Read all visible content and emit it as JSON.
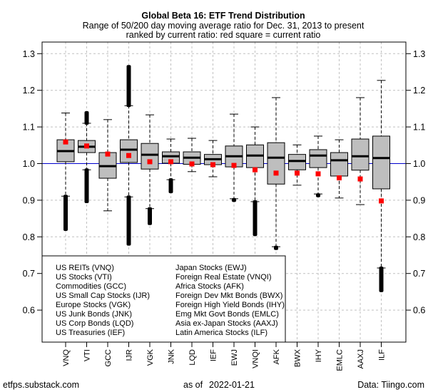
{
  "chart_data": {
    "type": "boxplot",
    "title": "Global Beta 16: ETF Trend Distribution",
    "subtitle_lines": [
      "Range of 50/200 day moving average ratio for Dec. 31, 2013 to present",
      "ranked by current ratio: red square = current ratio"
    ],
    "xlabel": "",
    "ylabel": "",
    "ylim": [
      0.58,
      1.336
    ],
    "yticks": [
      0.6,
      0.7,
      0.8,
      0.9,
      1.0,
      1.1,
      1.2,
      1.3
    ],
    "ytick_labels": [
      "0.6",
      "0.7",
      "0.8",
      "0.9",
      "1.0",
      "1.1",
      "1.2",
      "1.3"
    ],
    "reference_line": 1.0,
    "grid": true,
    "colors": {
      "box_fill": "#bebebe",
      "current_marker": "#ff0000",
      "reference_line": "#0000cc",
      "grid": "#c0c0c0"
    },
    "categories": [
      "VNQ",
      "VTI",
      "GCC",
      "IJR",
      "VGK",
      "JNK",
      "LQD",
      "IEF",
      "EWJ",
      "VNQI",
      "AFK",
      "BWX",
      "IHY",
      "EMLC",
      "AAXJ",
      "ILF"
    ],
    "series": [
      {
        "ticker": "VNQ",
        "whisker_low": 0.911,
        "q1": 1.005,
        "median": 1.034,
        "q3": 1.065,
        "whisker_high": 1.138,
        "outliers_low": [
          0.82,
          0.911
        ],
        "outliers_high": null,
        "current": 1.059
      },
      {
        "ticker": "VTI",
        "whisker_low": 0.983,
        "q1": 1.03,
        "median": 1.046,
        "q3": 1.063,
        "whisker_high": 1.11,
        "outliers_low": [
          0.896,
          0.983
        ],
        "outliers_high": [
          1.11,
          1.139
        ],
        "current": 1.048
      },
      {
        "ticker": "GCC",
        "whisker_low": 0.871,
        "q1": 0.96,
        "median": 0.993,
        "q3": 1.03,
        "whisker_high": 1.12,
        "outliers_low": null,
        "outliers_high": null,
        "current": 1.026
      },
      {
        "ticker": "IJR",
        "whisker_low": 0.909,
        "q1": 1.003,
        "median": 1.038,
        "q3": 1.065,
        "whisker_high": 1.158,
        "outliers_low": [
          0.78,
          0.909
        ],
        "outliers_high": [
          1.158,
          1.265
        ],
        "current": 1.022
      },
      {
        "ticker": "VGK",
        "whisker_low": 0.877,
        "q1": 0.985,
        "median": 1.024,
        "q3": 1.055,
        "whisker_high": 1.133,
        "outliers_low": [
          0.836,
          0.877
        ],
        "outliers_high": null,
        "current": 1.005
      },
      {
        "ticker": "JNK",
        "whisker_low": 0.956,
        "q1": 1.001,
        "median": 1.02,
        "q3": 1.032,
        "whisker_high": 1.067,
        "outliers_low": [
          0.923,
          0.956
        ],
        "outliers_high": null,
        "current": 1.005
      },
      {
        "ticker": "LQD",
        "whisker_low": 0.978,
        "q1": 0.998,
        "median": 1.016,
        "q3": 1.032,
        "whisker_high": 1.069,
        "outliers_low": null,
        "outliers_high": null,
        "current": 0.999
      },
      {
        "ticker": "IEF",
        "whisker_low": 0.964,
        "q1": 0.997,
        "median": 1.012,
        "q3": 1.025,
        "whisker_high": 1.063,
        "outliers_low": null,
        "outliers_high": null,
        "current": 0.997
      },
      {
        "ticker": "EWJ",
        "whisker_low": 0.904,
        "q1": 0.991,
        "median": 1.02,
        "q3": 1.048,
        "whisker_high": 1.135,
        "outliers_low": [
          0.899,
          0.902
        ],
        "outliers_high": null,
        "current": 0.995
      },
      {
        "ticker": "VNQI",
        "whisker_low": 0.896,
        "q1": 0.989,
        "median": 1.022,
        "q3": 1.051,
        "whisker_high": 1.1,
        "outliers_low": [
          0.806,
          0.896
        ],
        "outliers_high": null,
        "current": 0.983
      },
      {
        "ticker": "AFK",
        "whisker_low": 0.773,
        "q1": 0.944,
        "median": 1.016,
        "q3": 1.057,
        "whisker_high": 1.18,
        "outliers_low": [
          0.768,
          0.772
        ],
        "outliers_high": null,
        "current": 0.974
      },
      {
        "ticker": "BWX",
        "whisker_low": 0.941,
        "q1": 0.983,
        "median": 1.007,
        "q3": 1.025,
        "whisker_high": 1.051,
        "outliers_low": null,
        "outliers_high": null,
        "current": 0.974
      },
      {
        "ticker": "IHY",
        "whisker_low": 0.917,
        "q1": 0.989,
        "median": 1.022,
        "q3": 1.038,
        "whisker_high": 1.075,
        "outliers_low": [
          0.912,
          0.915
        ],
        "outliers_high": null,
        "current": 0.972
      },
      {
        "ticker": "EMLC",
        "whisker_low": 0.906,
        "q1": 0.966,
        "median": 1.009,
        "q3": 1.03,
        "whisker_high": 1.065,
        "outliers_low": null,
        "outliers_high": null,
        "current": 0.961
      },
      {
        "ticker": "AAXJ",
        "whisker_low": 0.888,
        "q1": 0.982,
        "median": 1.02,
        "q3": 1.067,
        "whisker_high": 1.18,
        "outliers_low": null,
        "outliers_high": null,
        "current": 0.958
      },
      {
        "ticker": "ILF",
        "whisker_low": 0.715,
        "q1": 0.931,
        "median": 1.015,
        "q3": 1.075,
        "whisker_high": 1.227,
        "outliers_low": [
          0.653,
          0.715
        ],
        "outliers_high": null,
        "current": 0.898
      }
    ],
    "legend": {
      "placement": "bottom-left",
      "columns": [
        [
          "US REITs (VNQ)",
          "US Stocks (VTI)",
          "Commodities (GCC)",
          "US Small Cap Stocks (IJR)",
          "Europe Stocks (VGK)",
          "US Junk Bonds (JNK)",
          "US Corp Bonds (LQD)",
          "US Treasuries (IEF)"
        ],
        [
          "Japan Stocks (EWJ)",
          "Foreign Real Estate (VNQI)",
          "Africa Stocks (AFK)",
          "Foreign Dev Mkt Bonds (BWX)",
          "Foreign High Yield Bonds (IHY)",
          "Emg Mkt Govt Bonds (EMLC)",
          "Asia ex-Japan Stocks (AAXJ)",
          "Latin America Stocks (ILF)"
        ]
      ]
    }
  },
  "footer": {
    "left": "etfps.substack.com",
    "center_prefix": "as of",
    "center_date": "2022-01-21",
    "right": "Data: Tiingo.com"
  }
}
